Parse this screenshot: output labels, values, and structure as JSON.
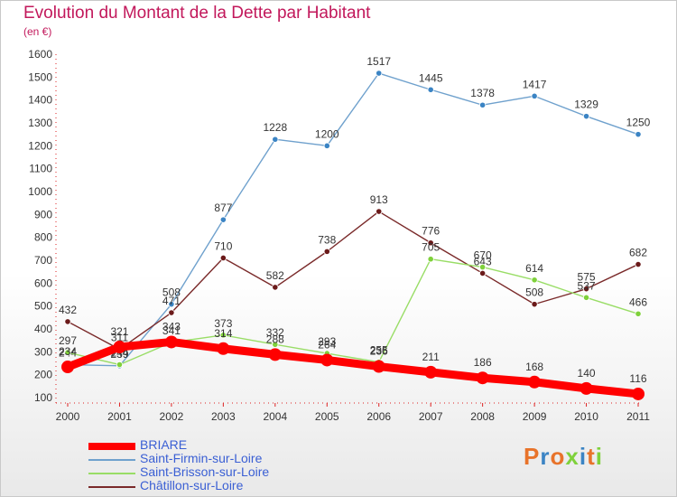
{
  "header": {
    "title": "Evolution du Montant de la Dette par Habitant",
    "unit": "(en €)"
  },
  "chart_data": {
    "type": "line",
    "title": "Evolution du Montant de la Dette par Habitant",
    "ylabel": "(en €)",
    "xlabel": "",
    "x": [
      "2000",
      "2001",
      "2002",
      "2003",
      "2004",
      "2005",
      "2006",
      "2007",
      "2008",
      "2009",
      "2010",
      "2011"
    ],
    "ylim": [
      100,
      1600
    ],
    "yticks": [
      100,
      200,
      300,
      400,
      500,
      600,
      700,
      800,
      900,
      1000,
      1100,
      1200,
      1300,
      1400,
      1500,
      1600
    ],
    "grid": false,
    "legend_position": "bottom-left",
    "series": [
      {
        "name": "BRIARE",
        "color": "#ff0000",
        "marker": "#ff0000",
        "values": [
          234,
          321,
          343,
          314,
          288,
          264,
          236,
          211,
          186,
          168,
          140,
          116
        ]
      },
      {
        "name": "Saint-Firmin-sur-Loire",
        "color": "#6fa1cd",
        "marker": "#3b84c4",
        "values": [
          244,
          239,
          508,
          877,
          1228,
          1200,
          1517,
          1445,
          1378,
          1417,
          1329,
          1250
        ]
      },
      {
        "name": "Saint-Brisson-sur-Loire",
        "color": "#99dd66",
        "marker": "#7fd13b",
        "values": [
          297,
          244,
          341,
          373,
          332,
          293,
          255,
          705,
          670,
          614,
          537,
          466
        ]
      },
      {
        "name": "Châtillon-sur-Loire",
        "color": "#7a2a2a",
        "marker": "#6b1a1a",
        "values": [
          432,
          311,
          471,
          710,
          582,
          738,
          913,
          776,
          643,
          508,
          575,
          682
        ]
      }
    ]
  },
  "legend": {
    "items": [
      {
        "label": "BRIARE",
        "color": "#ff0000"
      },
      {
        "label": "Saint-Firmin-sur-Loire",
        "color": "#6fa1cd"
      },
      {
        "label": "Saint-Brisson-sur-Loire",
        "color": "#99dd66"
      },
      {
        "label": "Châtillon-sur-Loire",
        "color": "#7a2a2a"
      }
    ]
  },
  "logo": {
    "text": "Proxiti",
    "colors": [
      "#e8732a",
      "#3b84c4",
      "#e8732a",
      "#7fd13b",
      "#3b84c4",
      "#e8732a",
      "#7fd13b"
    ]
  }
}
